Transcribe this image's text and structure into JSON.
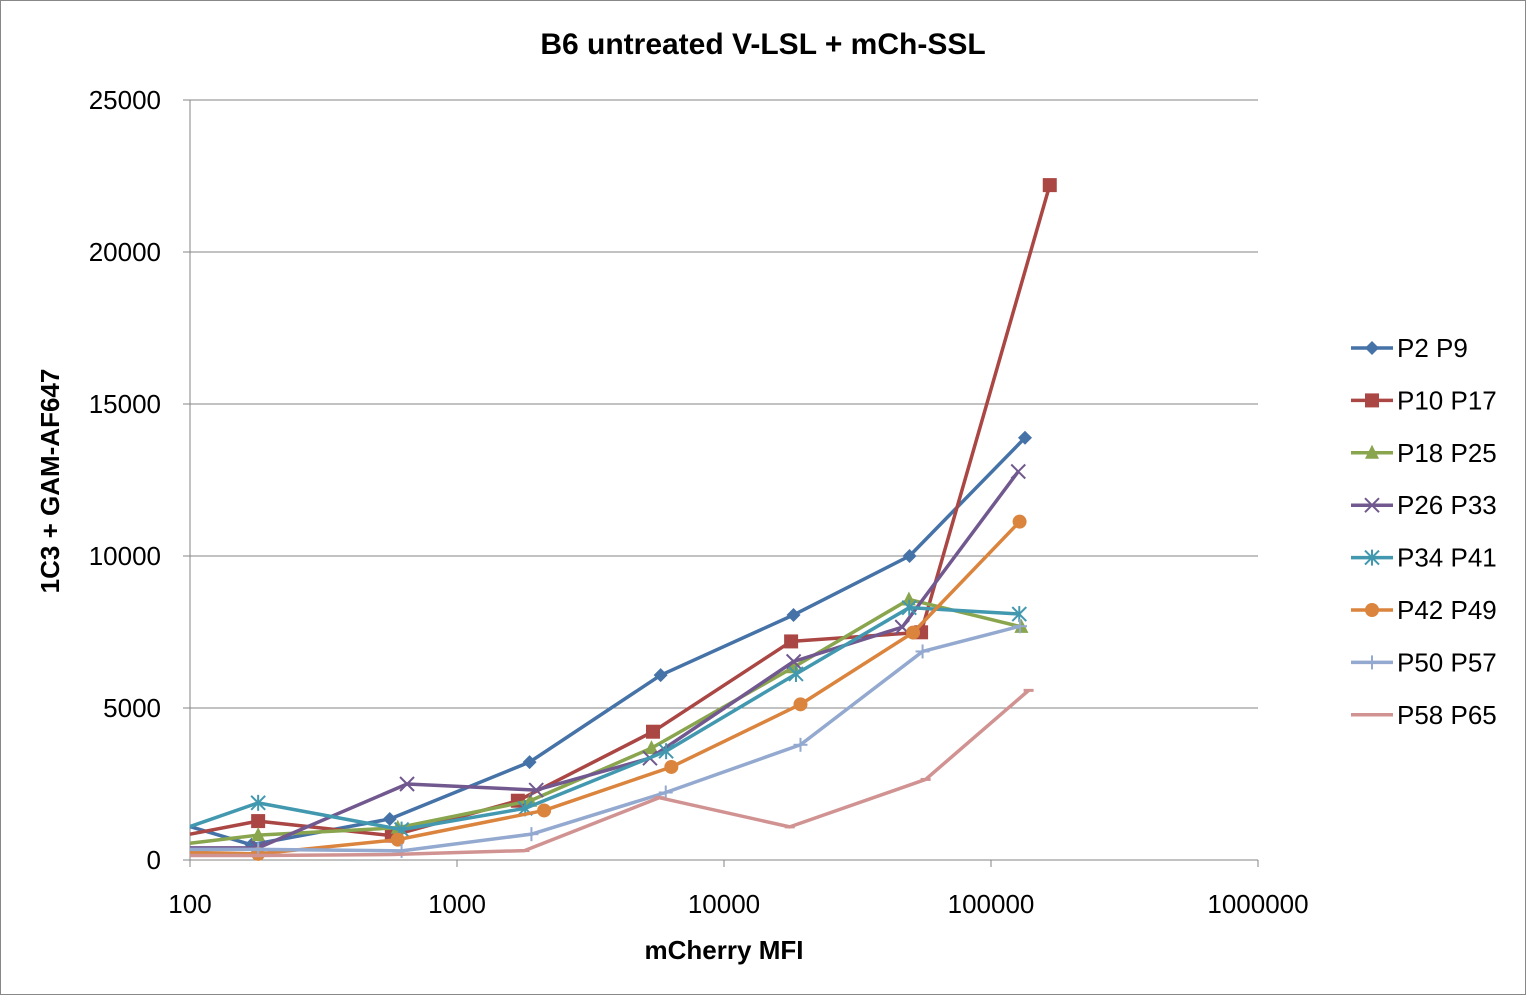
{
  "chart_data": {
    "type": "line",
    "title": "B6 untreated V-LSL + mCh-SSL",
    "xlabel": "mCherry MFI",
    "ylabel": "1C3 + GAM-AF647",
    "x_scale": "log",
    "xlim": [
      100,
      1000000
    ],
    "ylim": [
      0,
      25000
    ],
    "x_ticks": [
      "100",
      "1000",
      "10000",
      "100000",
      "1000000"
    ],
    "y_ticks": [
      "0",
      "5000",
      "10000",
      "15000",
      "20000",
      "25000"
    ],
    "grid": "horizontal",
    "legend_position": "right",
    "series": [
      {
        "name": "P2 P9",
        "color": "#4572A7",
        "marker": "diamond",
        "x": [
          100,
          170,
          560,
          1870,
          5790,
          18210,
          49530,
          134090
        ],
        "y": [
          1100,
          500,
          1350,
          3220,
          6080,
          8060,
          10000,
          13890
        ]
      },
      {
        "name": "P10 P17",
        "color": "#AA4643",
        "marker": "square",
        "x": [
          100,
          180,
          570,
          1690,
          5420,
          17840,
          54720,
          165990
        ],
        "y": [
          850,
          1280,
          800,
          1950,
          4220,
          7190,
          7490,
          22200
        ]
      },
      {
        "name": "P18 P25",
        "color": "#89A54E",
        "marker": "triangle",
        "x": [
          100,
          180,
          600,
          1880,
          5350,
          18210,
          49260,
          129970
        ],
        "y": [
          550,
          820,
          1060,
          1950,
          3680,
          6340,
          8570,
          7670
        ]
      },
      {
        "name": "P26 P33",
        "color": "#71588F",
        "marker": "x",
        "x": [
          100,
          180,
          650,
          1980,
          5280,
          18230,
          46520,
          126500
        ],
        "y": [
          400,
          400,
          2500,
          2300,
          3350,
          6530,
          7660,
          12780
        ]
      },
      {
        "name": "P34 P41",
        "color": "#4198AF",
        "marker": "asterisk",
        "x": [
          100,
          180,
          620,
          1800,
          6070,
          18600,
          49400,
          127620
        ],
        "y": [
          1100,
          1880,
          1000,
          1700,
          3580,
          6120,
          8300,
          8090
        ]
      },
      {
        "name": "P42 P49",
        "color": "#DB843D",
        "marker": "circle",
        "x": [
          100,
          180,
          600,
          2120,
          6350,
          19340,
          51050,
          127960
        ],
        "y": [
          250,
          200,
          670,
          1630,
          3060,
          5120,
          7480,
          11130
        ]
      },
      {
        "name": "P50 P57",
        "color": "#93A9CF",
        "marker": "plus",
        "x": [
          100,
          180,
          620,
          1900,
          6050,
          19340,
          55430,
          128430
        ],
        "y": [
          350,
          350,
          300,
          850,
          2220,
          3790,
          6860,
          7690
        ]
      },
      {
        "name": "P58 P65",
        "color": "#D19392",
        "marker": "dash",
        "x": [
          100,
          180,
          570,
          1790,
          5730,
          17630,
          56900,
          138310
        ],
        "y": [
          150,
          150,
          180,
          310,
          2050,
          1090,
          2650,
          5580
        ]
      }
    ]
  }
}
